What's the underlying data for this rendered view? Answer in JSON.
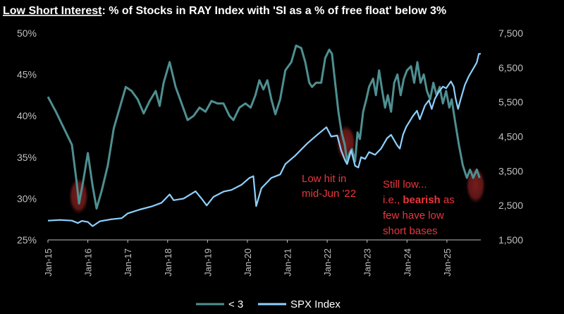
{
  "chart_data": {
    "type": "line",
    "title_prefix": "Low Short Interest",
    "title_rest": ": % of Stocks in RAY Index with 'SI as a % of free float' below 3%",
    "x_ticks": [
      "Jan-15",
      "Jan-16",
      "Jan-17",
      "Jan-18",
      "Jan-19",
      "Jan-20",
      "Jan-21",
      "Jan-22",
      "Jan-23",
      "Jan-24",
      "Jan-25"
    ],
    "x_range": [
      2015.0,
      2025.85
    ],
    "y_left": {
      "ticks": [
        "25%",
        "30%",
        "35%",
        "40%",
        "45%",
        "50%"
      ],
      "range": [
        25,
        50
      ]
    },
    "y_right": {
      "ticks": [
        "1,500",
        "2,500",
        "3,500",
        "4,500",
        "5,500",
        "6,500",
        "7,500"
      ],
      "range": [
        1500,
        7500
      ]
    },
    "series": [
      {
        "name": "< 3",
        "color": "#4f8f91",
        "axis": "left",
        "points": [
          [
            2015.0,
            42.3
          ],
          [
            2015.2,
            40.5
          ],
          [
            2015.45,
            38.0
          ],
          [
            2015.6,
            36.5
          ],
          [
            2015.72,
            32.0
          ],
          [
            2015.78,
            29.4
          ],
          [
            2015.88,
            32.0
          ],
          [
            2016.0,
            35.5
          ],
          [
            2016.12,
            31.5
          ],
          [
            2016.22,
            28.8
          ],
          [
            2016.35,
            31.0
          ],
          [
            2016.5,
            34.0
          ],
          [
            2016.65,
            38.5
          ],
          [
            2016.8,
            41.0
          ],
          [
            2016.95,
            43.5
          ],
          [
            2017.1,
            43.0
          ],
          [
            2017.25,
            42.0
          ],
          [
            2017.4,
            40.3
          ],
          [
            2017.55,
            41.8
          ],
          [
            2017.7,
            43.0
          ],
          [
            2017.8,
            41.2
          ],
          [
            2017.9,
            44.0
          ],
          [
            2018.05,
            46.5
          ],
          [
            2018.2,
            43.5
          ],
          [
            2018.35,
            41.5
          ],
          [
            2018.5,
            39.5
          ],
          [
            2018.65,
            40.0
          ],
          [
            2018.8,
            41.0
          ],
          [
            2018.95,
            40.5
          ],
          [
            2019.1,
            41.8
          ],
          [
            2019.25,
            41.5
          ],
          [
            2019.4,
            41.5
          ],
          [
            2019.55,
            40.0
          ],
          [
            2019.65,
            39.5
          ],
          [
            2019.8,
            41.0
          ],
          [
            2019.95,
            41.5
          ],
          [
            2020.08,
            41.0
          ],
          [
            2020.2,
            42.5
          ],
          [
            2020.3,
            44.3
          ],
          [
            2020.4,
            43.2
          ],
          [
            2020.5,
            44.3
          ],
          [
            2020.6,
            42.0
          ],
          [
            2020.7,
            40.2
          ],
          [
            2020.82,
            42.0
          ],
          [
            2020.95,
            45.5
          ],
          [
            2021.1,
            46.5
          ],
          [
            2021.22,
            48.5
          ],
          [
            2021.35,
            48.2
          ],
          [
            2021.45,
            46.5
          ],
          [
            2021.55,
            44.0
          ],
          [
            2021.62,
            43.5
          ],
          [
            2021.72,
            44.0
          ],
          [
            2021.85,
            44.0
          ],
          [
            2021.95,
            47.0
          ],
          [
            2022.05,
            48.0
          ],
          [
            2022.12,
            47.5
          ],
          [
            2022.2,
            44.0
          ],
          [
            2022.28,
            40.5
          ],
          [
            2022.36,
            38.0
          ],
          [
            2022.44,
            36.5
          ],
          [
            2022.5,
            34.5
          ],
          [
            2022.56,
            35.5
          ],
          [
            2022.62,
            36.0
          ],
          [
            2022.7,
            34.5
          ],
          [
            2022.76,
            38.0
          ],
          [
            2022.82,
            37.2
          ],
          [
            2022.9,
            40.5
          ],
          [
            2022.98,
            42.0
          ],
          [
            2023.05,
            43.5
          ],
          [
            2023.15,
            44.5
          ],
          [
            2023.22,
            42.5
          ],
          [
            2023.3,
            45.5
          ],
          [
            2023.38,
            43.0
          ],
          [
            2023.45,
            41.0
          ],
          [
            2023.52,
            42.5
          ],
          [
            2023.6,
            40.5
          ],
          [
            2023.68,
            44.0
          ],
          [
            2023.76,
            45.0
          ],
          [
            2023.84,
            42.5
          ],
          [
            2023.92,
            44.5
          ],
          [
            2024.0,
            45.5
          ],
          [
            2024.1,
            46.0
          ],
          [
            2024.18,
            44.0
          ],
          [
            2024.26,
            46.5
          ],
          [
            2024.34,
            44.0
          ],
          [
            2024.42,
            45.0
          ],
          [
            2024.5,
            43.0
          ],
          [
            2024.58,
            42.0
          ],
          [
            2024.66,
            44.0
          ],
          [
            2024.74,
            42.5
          ],
          [
            2024.82,
            43.5
          ],
          [
            2024.9,
            41.5
          ],
          [
            2024.98,
            43.0
          ],
          [
            2025.06,
            41.0
          ],
          [
            2025.12,
            42.0
          ],
          [
            2025.2,
            39.5
          ],
          [
            2025.3,
            36.5
          ],
          [
            2025.4,
            34.0
          ],
          [
            2025.5,
            32.5
          ],
          [
            2025.58,
            33.5
          ],
          [
            2025.66,
            32.5
          ],
          [
            2025.75,
            33.5
          ],
          [
            2025.82,
            32.5
          ]
        ]
      },
      {
        "name": "SPX Index",
        "color": "#8fd1ff",
        "axis": "right",
        "points": [
          [
            2015.0,
            2060
          ],
          [
            2015.3,
            2080
          ],
          [
            2015.6,
            2060
          ],
          [
            2015.75,
            1990
          ],
          [
            2015.85,
            2050
          ],
          [
            2016.0,
            2020
          ],
          [
            2016.12,
            1900
          ],
          [
            2016.3,
            2040
          ],
          [
            2016.6,
            2100
          ],
          [
            2016.85,
            2130
          ],
          [
            2017.0,
            2270
          ],
          [
            2017.3,
            2380
          ],
          [
            2017.6,
            2470
          ],
          [
            2017.85,
            2580
          ],
          [
            2018.05,
            2820
          ],
          [
            2018.15,
            2650
          ],
          [
            2018.4,
            2700
          ],
          [
            2018.7,
            2910
          ],
          [
            2018.85,
            2700
          ],
          [
            2018.98,
            2500
          ],
          [
            2019.15,
            2750
          ],
          [
            2019.4,
            2900
          ],
          [
            2019.6,
            2950
          ],
          [
            2019.85,
            3100
          ],
          [
            2020.05,
            3300
          ],
          [
            2020.15,
            3350
          ],
          [
            2020.22,
            2480
          ],
          [
            2020.35,
            3000
          ],
          [
            2020.6,
            3300
          ],
          [
            2020.82,
            3400
          ],
          [
            2020.95,
            3700
          ],
          [
            2021.2,
            3950
          ],
          [
            2021.5,
            4300
          ],
          [
            2021.75,
            4550
          ],
          [
            2021.98,
            4770
          ],
          [
            2022.1,
            4500
          ],
          [
            2022.25,
            4530
          ],
          [
            2022.35,
            4100
          ],
          [
            2022.45,
            3800
          ],
          [
            2022.5,
            3700
          ],
          [
            2022.6,
            4100
          ],
          [
            2022.7,
            3650
          ],
          [
            2022.78,
            3600
          ],
          [
            2022.85,
            3900
          ],
          [
            2022.95,
            3850
          ],
          [
            2023.05,
            4050
          ],
          [
            2023.2,
            3970
          ],
          [
            2023.35,
            4150
          ],
          [
            2023.5,
            4450
          ],
          [
            2023.6,
            4550
          ],
          [
            2023.75,
            4250
          ],
          [
            2023.82,
            4150
          ],
          [
            2023.9,
            4550
          ],
          [
            2023.98,
            4780
          ],
          [
            2024.15,
            5100
          ],
          [
            2024.25,
            5250
          ],
          [
            2024.32,
            5000
          ],
          [
            2024.45,
            5400
          ],
          [
            2024.55,
            5550
          ],
          [
            2024.62,
            5300
          ],
          [
            2024.7,
            5600
          ],
          [
            2024.8,
            5800
          ],
          [
            2024.9,
            5950
          ],
          [
            2024.98,
            5900
          ],
          [
            2025.1,
            6100
          ],
          [
            2025.17,
            5950
          ],
          [
            2025.22,
            5600
          ],
          [
            2025.28,
            5300
          ],
          [
            2025.35,
            5600
          ],
          [
            2025.45,
            6000
          ],
          [
            2025.55,
            6250
          ],
          [
            2025.65,
            6450
          ],
          [
            2025.75,
            6650
          ],
          [
            2025.8,
            6900
          ],
          [
            2025.85,
            6900
          ]
        ]
      }
    ],
    "annotations": [
      {
        "name": "low-hit-label",
        "lines": [
          "Low hit in",
          "mid-Jun '22"
        ],
        "color": "#e8373c"
      },
      {
        "name": "still-low-label",
        "line1": "Still low...",
        "line2_pre": "i.e., ",
        "line2_bold": "bearish",
        "line2_post": " as",
        "line3": "few have  low",
        "line4": "short bases",
        "color": "#e8373c"
      }
    ],
    "highlights": [
      {
        "name": "highlight-jan16",
        "x": 2015.77,
        "y": 30.3
      },
      {
        "name": "highlight-jun22",
        "x": 2022.47,
        "y": 36.7
      },
      {
        "name": "highlight-jun25",
        "x": 2025.72,
        "y": 31.6
      }
    ],
    "legend": {
      "position": "bottom-center",
      "items": [
        "< 3",
        "SPX Index"
      ]
    }
  }
}
